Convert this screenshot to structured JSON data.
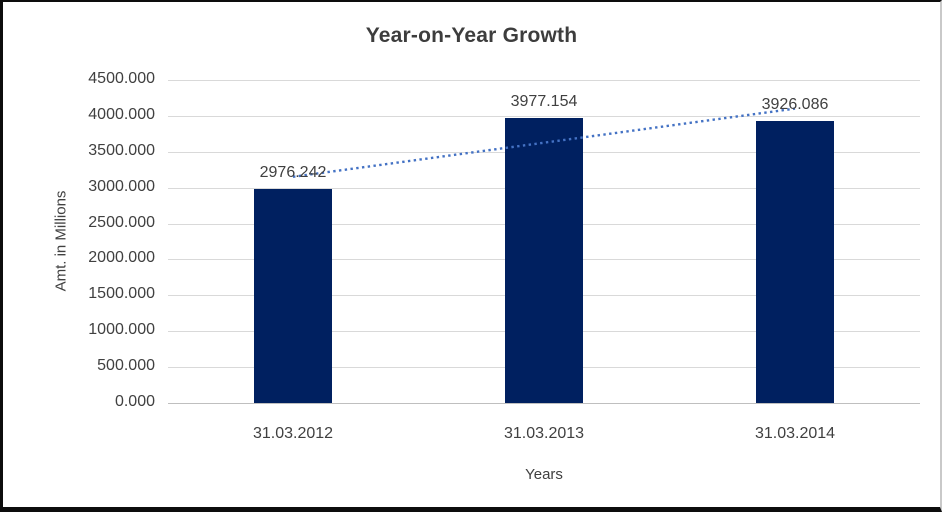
{
  "chart_data": {
    "type": "bar",
    "title": "Year-on-Year Growth",
    "xlabel": "Years",
    "ylabel": "Amt. in Millions",
    "categories": [
      "31.03.2012",
      "31.03.2013",
      "31.03.2014"
    ],
    "values": [
      2976.242,
      3977.154,
      3926.086
    ],
    "data_labels": [
      "2976.242",
      "3977.154",
      "3926.086"
    ],
    "ylim": [
      0,
      4500
    ],
    "ytick_step": 500,
    "ytick_decimals": 3,
    "grid": true,
    "legend": false,
    "trendline": {
      "type": "linear",
      "style": "dotted",
      "endpoints": [
        3151.572,
        4101.416
      ]
    },
    "colors": {
      "bar": "#002060",
      "trendline": "#4472C4",
      "gridline": "#d9d9d9",
      "axis_line": "#bfbfbf",
      "text": "#404040"
    }
  }
}
